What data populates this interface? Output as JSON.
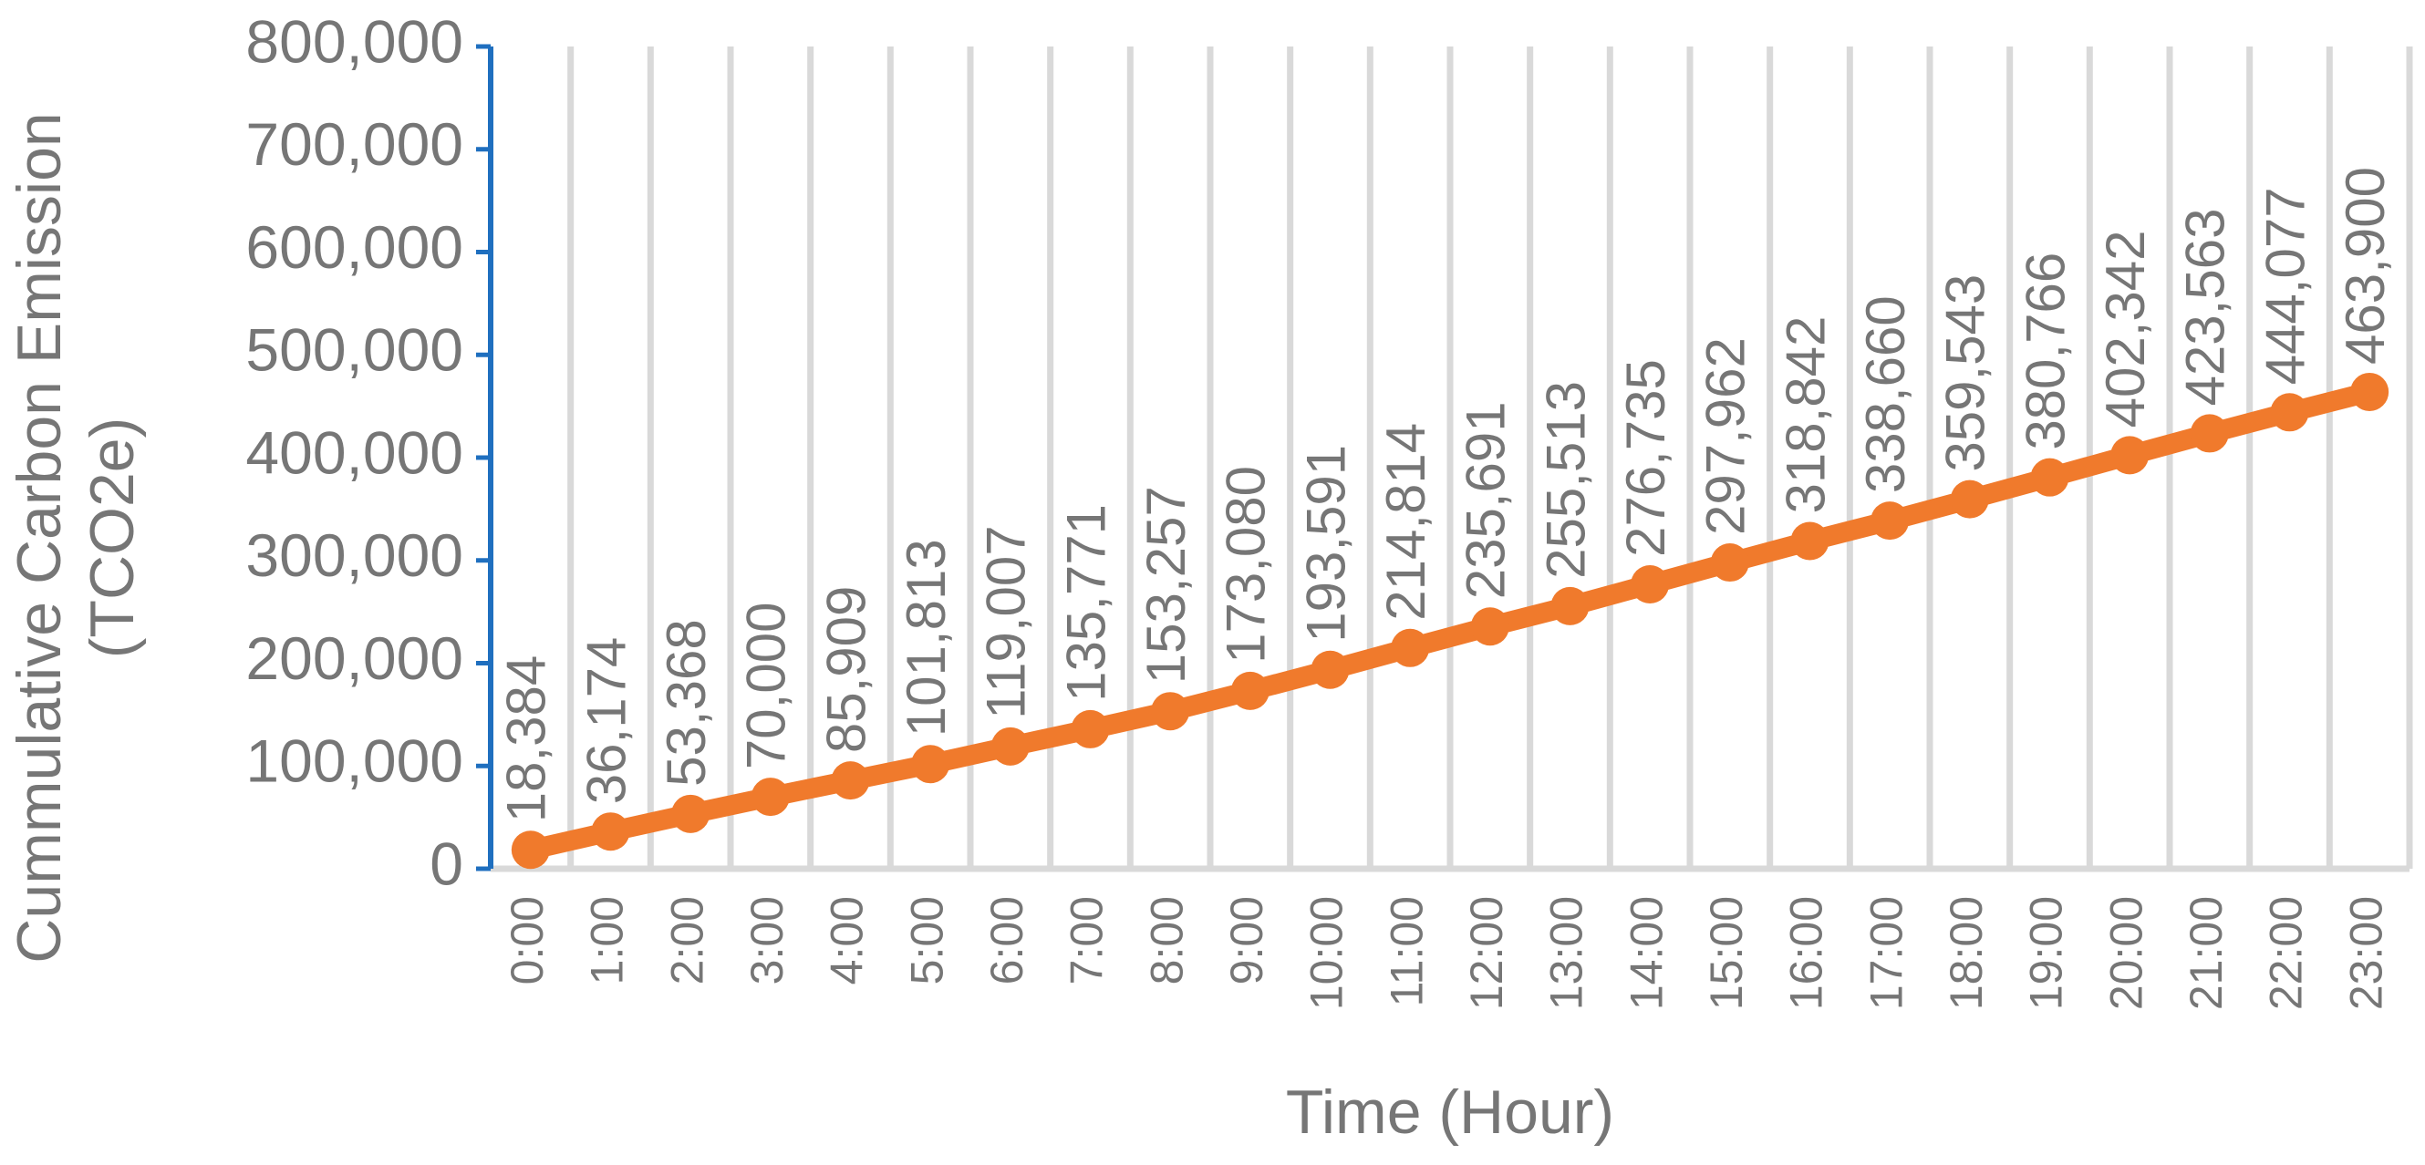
{
  "chart_data": {
    "type": "line",
    "xlabel": "Time (Hour)",
    "ylabel": [
      "Cummulative Carbon Emission",
      "(TCO2e)"
    ],
    "categories": [
      "0:00",
      "1:00",
      "2:00",
      "3:00",
      "4:00",
      "5:00",
      "6:00",
      "7:00",
      "8:00",
      "9:00",
      "10:00",
      "11:00",
      "12:00",
      "13:00",
      "14:00",
      "15:00",
      "16:00",
      "17:00",
      "18:00",
      "19:00",
      "20:00",
      "21:00",
      "22:00",
      "23:00"
    ],
    "series": [
      {
        "color": "#f07a2c",
        "values": [
          18384,
          36174,
          53368,
          70000,
          85909,
          101813,
          119007,
          135771,
          153257,
          173080,
          193591,
          214814,
          235691,
          255513,
          276735,
          297962,
          318842,
          338660,
          359543,
          380766,
          402342,
          423563,
          444077,
          463900
        ],
        "value_labels": [
          "18,384",
          "36,174",
          "53,368",
          "70,000",
          "85,909",
          "101,813",
          "119,007",
          "135,771",
          "153,257",
          "173,080",
          "193,591",
          "214,814",
          "235,691",
          "255,513",
          "276,735",
          "297,962",
          "318,842",
          "338,660",
          "359,543",
          "380,766",
          "402,342",
          "423,563",
          "444,077",
          "463,900"
        ]
      }
    ],
    "ylim": [
      0,
      800000
    ],
    "yticks": [
      0,
      {
        "value": 100000,
        "label": "100,000"
      },
      {
        "value": 200000,
        "label": "200,000"
      },
      {
        "value": 300000,
        "label": "300,000"
      },
      {
        "value": 400000,
        "label": "400,000"
      },
      {
        "value": 500000,
        "label": "500,000"
      },
      {
        "value": 600000,
        "label": "600,000"
      },
      {
        "value": 700000,
        "label": "700,000"
      },
      {
        "value": 800000,
        "label": "800,000"
      }
    ],
    "axis_color": "#1f6fbf",
    "grid_color": "#d9d9d9"
  }
}
